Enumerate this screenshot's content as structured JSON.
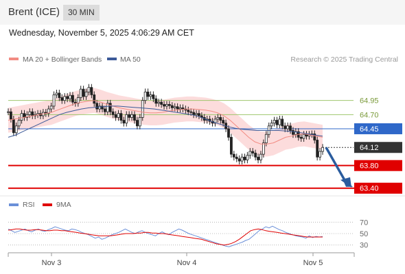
{
  "header": {
    "symbol": "Brent (ICE)",
    "timeframe": "30 MIN"
  },
  "datetime": "Wednesday, November 5, 2025 4:06:29 AM CET",
  "colors": {
    "ma20": "#f28b82",
    "ma50": "#3b5998",
    "bands": "#fbd0d0",
    "support": "#e00000",
    "pivot": "#2f68c9",
    "resistance": "#9ec66b",
    "last": "#333333",
    "rsi": "#6a8fd8",
    "rsi_ma": "#e00000",
    "arrow": "#2a5c9e"
  },
  "chart_data": [
    {
      "type": "line",
      "legend": [
        {
          "name": "MA 20 + Bollinger Bands",
          "color": "#f28b82"
        },
        {
          "name": "MA 50",
          "color": "#3b5998"
        }
      ],
      "copyright": "Research © 2025 Trading Central",
      "ylim": [
        63.3,
        65.2
      ],
      "x_ticks": [
        "Nov 3",
        "Nov 4",
        "Nov 5"
      ],
      "levels": [
        {
          "label": "64.95",
          "value": 64.95,
          "kind": "resistance"
        },
        {
          "label": "64.70",
          "value": 64.7,
          "kind": "resistance"
        },
        {
          "label": "64.45",
          "value": 64.45,
          "kind": "pivot"
        },
        {
          "label": "64.12",
          "value": 64.12,
          "kind": "last"
        },
        {
          "label": "63.80",
          "value": 63.8,
          "kind": "support"
        },
        {
          "label": "63.40",
          "value": 63.4,
          "kind": "support"
        }
      ],
      "close_series": [
        64.75,
        64.62,
        64.38,
        64.5,
        64.6,
        64.72,
        64.65,
        64.7,
        64.75,
        64.68,
        64.7,
        64.72,
        64.68,
        64.74,
        64.72,
        64.8,
        64.85,
        65.05,
        65.08,
        65.0,
        64.95,
        65.02,
        64.98,
        65.04,
        64.92,
        64.9,
        65.0,
        65.15,
        65.02,
        65.1,
        65.18,
        65.05,
        64.9,
        64.8,
        64.85,
        64.8,
        64.75,
        64.9,
        64.75,
        64.7,
        64.65,
        64.72,
        64.6,
        64.55,
        64.7,
        64.65,
        64.7,
        64.6,
        64.5,
        64.65,
        64.95,
        65.1,
        65.02,
        65.05,
        64.98,
        64.9,
        64.92,
        64.88,
        64.85,
        64.88,
        64.86,
        64.82,
        64.84,
        64.8,
        64.82,
        64.8,
        64.78,
        64.75,
        64.74,
        64.7,
        64.72,
        64.68,
        64.65,
        64.6,
        64.62,
        64.58,
        64.55,
        64.62,
        64.65,
        64.6,
        64.55,
        64.45,
        64.3,
        64.0,
        63.95,
        63.92,
        63.88,
        63.95,
        63.9,
        63.98,
        64.05,
        64.02,
        63.95,
        63.9,
        64.0,
        64.2,
        64.35,
        64.5,
        64.55,
        64.6,
        64.52,
        64.62,
        64.5,
        64.45,
        64.5,
        64.42,
        64.35,
        64.4,
        64.3,
        64.28,
        64.35,
        64.32,
        64.35,
        64.36,
        64.25,
        63.95,
        64.05,
        64.12
      ],
      "ma20_series": [
        64.6,
        64.62,
        64.64,
        64.66,
        64.68,
        64.7,
        64.72,
        64.74,
        64.78,
        64.82,
        64.86,
        64.9,
        64.92,
        64.94,
        64.95,
        64.92,
        64.88,
        64.85,
        64.82,
        64.8,
        64.78,
        64.76,
        64.74,
        64.73,
        64.73,
        64.74,
        64.76,
        64.78,
        64.79,
        64.8,
        64.8,
        64.79,
        64.78,
        64.76,
        64.73,
        64.68,
        64.6,
        64.5,
        64.4,
        64.3,
        64.22,
        64.18,
        64.18,
        64.2,
        64.25,
        64.3,
        64.32,
        64.35,
        64.36,
        64.34,
        64.32,
        64.3
      ],
      "ma50_series": [
        64.3,
        64.34,
        64.4,
        64.46,
        64.52,
        64.58,
        64.64,
        64.7,
        64.74,
        64.77,
        64.8,
        64.82,
        64.83,
        64.84,
        64.85,
        64.85,
        64.84,
        64.83,
        64.82,
        64.81,
        64.8,
        64.78,
        64.76,
        64.74,
        64.72,
        64.7,
        64.67,
        64.62,
        64.57,
        64.53,
        64.49,
        64.46,
        64.44,
        64.43,
        64.42,
        64.42,
        64.42,
        64.42,
        64.41,
        64.4,
        64.38,
        64.36,
        64.34,
        64.32
      ],
      "band_halfwidth": 0.22
    },
    {
      "type": "line",
      "legend": [
        {
          "name": "RSI",
          "color": "#6a8fd8"
        },
        {
          "name": "9MA",
          "color": "#e00000"
        }
      ],
      "ylim": [
        20,
        80
      ],
      "y_ticks": [
        {
          "label": "70",
          "value": 70
        },
        {
          "label": "50",
          "value": 50
        },
        {
          "label": "30",
          "value": 30
        }
      ],
      "rsi_series": [
        58,
        55,
        52,
        54,
        56,
        58,
        55,
        53,
        56,
        58,
        55,
        54,
        57,
        59,
        62,
        60,
        58,
        56,
        55,
        58,
        57,
        55,
        52,
        50,
        48,
        45,
        42,
        44,
        40,
        42,
        45,
        48,
        50,
        52,
        55,
        58,
        55,
        52,
        50,
        53,
        55,
        52,
        50,
        48,
        46,
        50,
        53,
        50,
        48,
        52,
        55,
        58,
        56,
        53,
        50,
        48,
        46,
        44,
        42,
        40,
        38,
        36,
        34,
        32,
        30,
        28,
        27,
        29,
        31,
        33,
        35,
        38,
        40,
        45,
        50,
        55,
        58,
        62,
        60,
        63,
        60,
        57,
        55,
        52,
        50,
        48,
        46,
        45,
        44,
        42,
        46,
        43,
        45,
        44,
        45
      ],
      "rsi_ma_series": [
        56,
        57,
        58,
        58,
        57,
        56,
        56,
        57,
        57,
        56,
        55,
        55,
        56,
        56,
        55,
        55,
        54,
        53,
        52,
        51,
        50,
        49,
        48,
        47,
        46,
        46,
        46,
        46,
        47,
        48,
        49,
        50,
        50,
        50,
        51,
        51,
        52,
        52,
        51,
        51,
        50,
        50,
        49,
        48,
        47,
        46,
        45,
        44,
        43,
        42,
        41,
        40,
        38,
        36,
        34,
        32,
        31,
        30,
        31,
        33,
        36,
        40,
        45,
        50,
        55,
        57,
        58,
        57,
        55,
        54,
        53,
        52,
        51,
        50,
        49,
        48,
        47,
        46,
        45,
        44,
        44,
        44,
        44,
        44
      ]
    }
  ]
}
